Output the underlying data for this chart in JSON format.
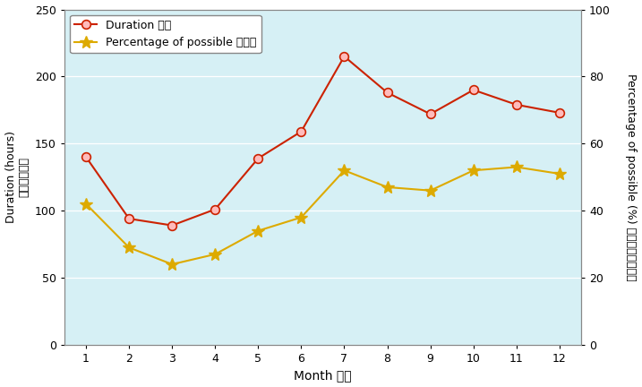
{
  "months": [
    1,
    2,
    3,
    4,
    5,
    6,
    7,
    8,
    9,
    10,
    11,
    12
  ],
  "duration": [
    140,
    94,
    89,
    101,
    139,
    159,
    215,
    188,
    172,
    190,
    179,
    173
  ],
  "percentage": [
    42,
    29,
    24,
    27,
    34,
    38,
    52,
    47,
    46,
    52,
    53,
    51
  ],
  "duration_color": "#cc2200",
  "percentage_color": "#ddaa00",
  "bg_color": "#d6f0f5",
  "ylabel_left_en": "Duration (hours)",
  "ylabel_left_zh": "時間（小時）",
  "ylabel_right_en": "Percentage of possible (%)",
  "ylabel_right_zh": "日照百分比（％）",
  "xlabel": "Month 月份",
  "legend_duration": "Duration 時間",
  "legend_percentage": "Percentage of possible 百分比",
  "ylim_left": [
    0,
    250
  ],
  "ylim_right": [
    0,
    100
  ],
  "yticks_left": [
    0,
    50,
    100,
    150,
    200,
    250
  ],
  "yticks_right": [
    0,
    20,
    40,
    60,
    80,
    100
  ],
  "grid_color": "#ccecf0",
  "spine_color": "#888888"
}
